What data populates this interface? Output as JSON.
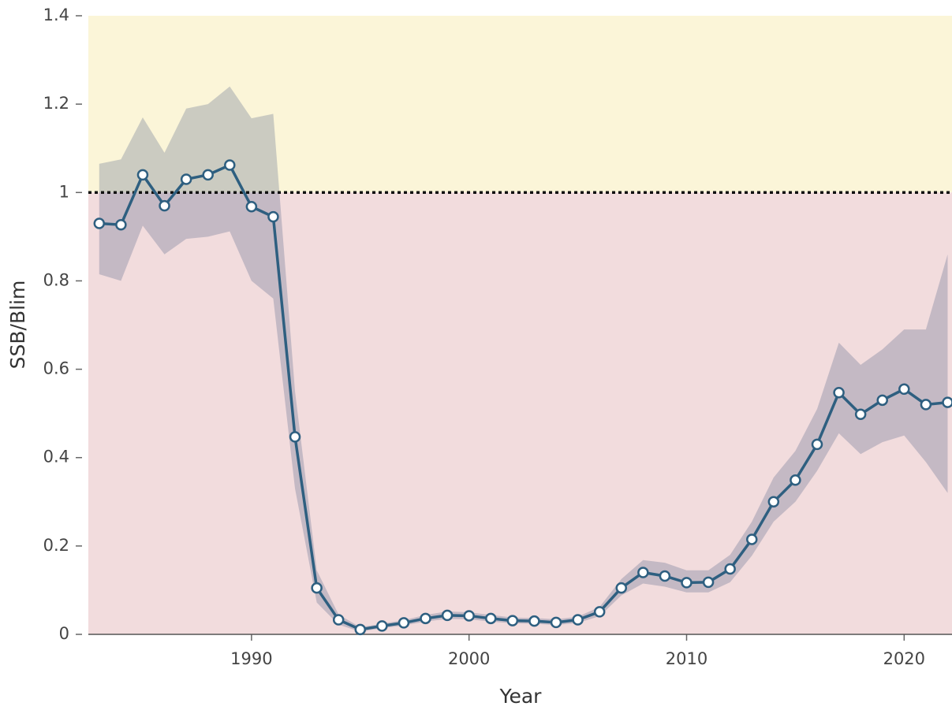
{
  "chart_data": {
    "type": "line",
    "x_label": "Year",
    "y_label": "SSB/Blim",
    "x": [
      1983,
      1984,
      1985,
      1986,
      1987,
      1988,
      1989,
      1990,
      1991,
      1992,
      1993,
      1994,
      1995,
      1996,
      1997,
      1998,
      1999,
      2000,
      2001,
      2002,
      2003,
      2004,
      2005,
      2006,
      2007,
      2008,
      2009,
      2010,
      2011,
      2012,
      2013,
      2014,
      2015,
      2016,
      2017,
      2018,
      2019,
      2020,
      2021,
      2022
    ],
    "values": [
      0.93,
      0.927,
      1.04,
      0.97,
      1.03,
      1.04,
      1.062,
      0.968,
      0.945,
      0.447,
      0.105,
      0.033,
      0.011,
      0.019,
      0.026,
      0.036,
      0.043,
      0.042,
      0.036,
      0.031,
      0.03,
      0.027,
      0.033,
      0.051,
      0.105,
      0.14,
      0.132,
      0.117,
      0.118,
      0.148,
      0.215,
      0.3,
      0.349,
      0.43,
      0.547,
      0.498,
      0.53,
      0.555,
      0.52,
      0.525
    ],
    "upper": [
      1.065,
      1.075,
      1.17,
      1.09,
      1.19,
      1.2,
      1.24,
      1.168,
      1.178,
      0.55,
      0.145,
      0.045,
      0.016,
      0.024,
      0.032,
      0.044,
      0.052,
      0.05,
      0.044,
      0.038,
      0.037,
      0.034,
      0.04,
      0.062,
      0.125,
      0.168,
      0.162,
      0.145,
      0.145,
      0.18,
      0.255,
      0.355,
      0.415,
      0.51,
      0.66,
      0.61,
      0.645,
      0.69,
      0.69,
      0.86
    ],
    "lower": [
      0.815,
      0.8,
      0.925,
      0.86,
      0.895,
      0.9,
      0.912,
      0.8,
      0.76,
      0.33,
      0.072,
      0.022,
      0.006,
      0.014,
      0.02,
      0.029,
      0.035,
      0.034,
      0.029,
      0.025,
      0.024,
      0.021,
      0.026,
      0.041,
      0.088,
      0.115,
      0.108,
      0.095,
      0.095,
      0.118,
      0.178,
      0.255,
      0.3,
      0.37,
      0.455,
      0.408,
      0.435,
      0.45,
      0.39,
      0.32
    ],
    "color": "#2e5f80",
    "band_color": "rgba(60,80,125,0.25)",
    "threshold": 1,
    "above_color": "#fbf5d8",
    "below_color": "#f2dcdd",
    "xlim": [
      1982.5,
      2022.2
    ],
    "ylim": [
      0,
      1.4
    ],
    "xticks": [
      1990,
      2000,
      2010,
      2020
    ],
    "yticks": [
      0,
      0.2,
      0.4,
      0.6,
      0.8,
      1,
      1.2,
      1.4
    ]
  }
}
